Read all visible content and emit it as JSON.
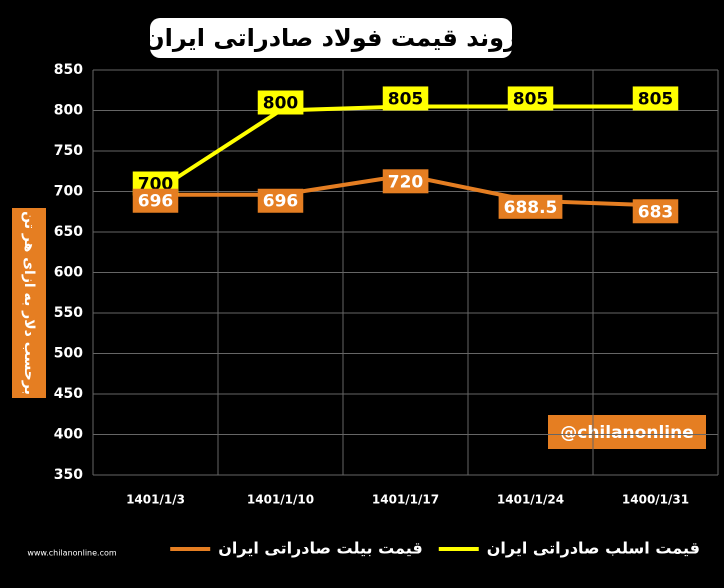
{
  "chart_data": {
    "type": "line",
    "title": "روند قیمت فولاد صادراتی ایران",
    "y_label": "برحسب دلار به ازای هر تن",
    "annotation": "@chilanonline",
    "watermark": "www.chilanonline.com",
    "categories": [
      "1401/1/3",
      "1401/1/10",
      "1401/1/17",
      "1401/1/24",
      "1400/1/31"
    ],
    "series": [
      {
        "name": "قیمت اسلب صادراتی ایران",
        "color": "#ffff00",
        "values": [
          700,
          800,
          805,
          805,
          805
        ]
      },
      {
        "name": "قیمت بیلت صادراتی ایران",
        "color": "#e57e22",
        "values": [
          696,
          696,
          720,
          688.5,
          683
        ]
      }
    ],
    "ylim": [
      350,
      850
    ],
    "yticks": [
      350,
      400,
      450,
      500,
      550,
      600,
      650,
      700,
      750,
      800,
      850
    ],
    "grid": true
  }
}
